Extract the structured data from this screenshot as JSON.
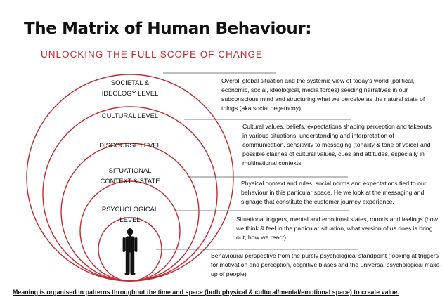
{
  "title": "The Matrix of Human Behaviour:",
  "subtitle": "UNLOCKING THE FULL SCOPE OF CHANGE",
  "levels": [
    {
      "name": "SOCIETAL &\nIDEOLOGY LEVEL",
      "description": "Overall global situation and the systemic view of today's world (political, economic, social, ideological, media forces) seeding narratives in our subconscious mind and structuring what we perceive as the natural state of things (aka social hegemony)."
    },
    {
      "name": "CULTURAL LEVEL",
      "description": "Cultural values, beliefs, expectations shaping perception and takeouts in various situations, understanding and interpretation of communication, sensitivity to messaging (tonality & tone of voice) and possible clashes of cultural values, cues and attitudes, especially in multinational contexts."
    },
    {
      "name": "DISCOURSE LEVEL",
      "description": "Physical context and rules, social norms and expectations tied to our behaviour in this particular space. He we look at the messaging and signage that constitute the customer journey experience."
    },
    {
      "name": "SITUATIONAL\nCONTEXT & STATE",
      "description": "Situational triggers, mental and emotional states, moods and feelings (how we think & feel in the particular situation, what version of us does is bring out, how we react)"
    },
    {
      "name": "PSYCHOLOGICAL\nLEVEL",
      "description": "Behavioural perspective from the purely psychological standpoint (looking at triggers for motivation and perception, cognitive biases and the universal psychological make-up of people)"
    }
  ],
  "footer": "Meaning is organised in patterns throughout the time and space (both physical & cultural/mental/emotional space) to create value.",
  "colors": {
    "circle_stroke": "#c8282f",
    "subtitle": "#c8282f",
    "connector": "#555555"
  },
  "icons": {
    "figure": "human-figure-silhouette"
  }
}
